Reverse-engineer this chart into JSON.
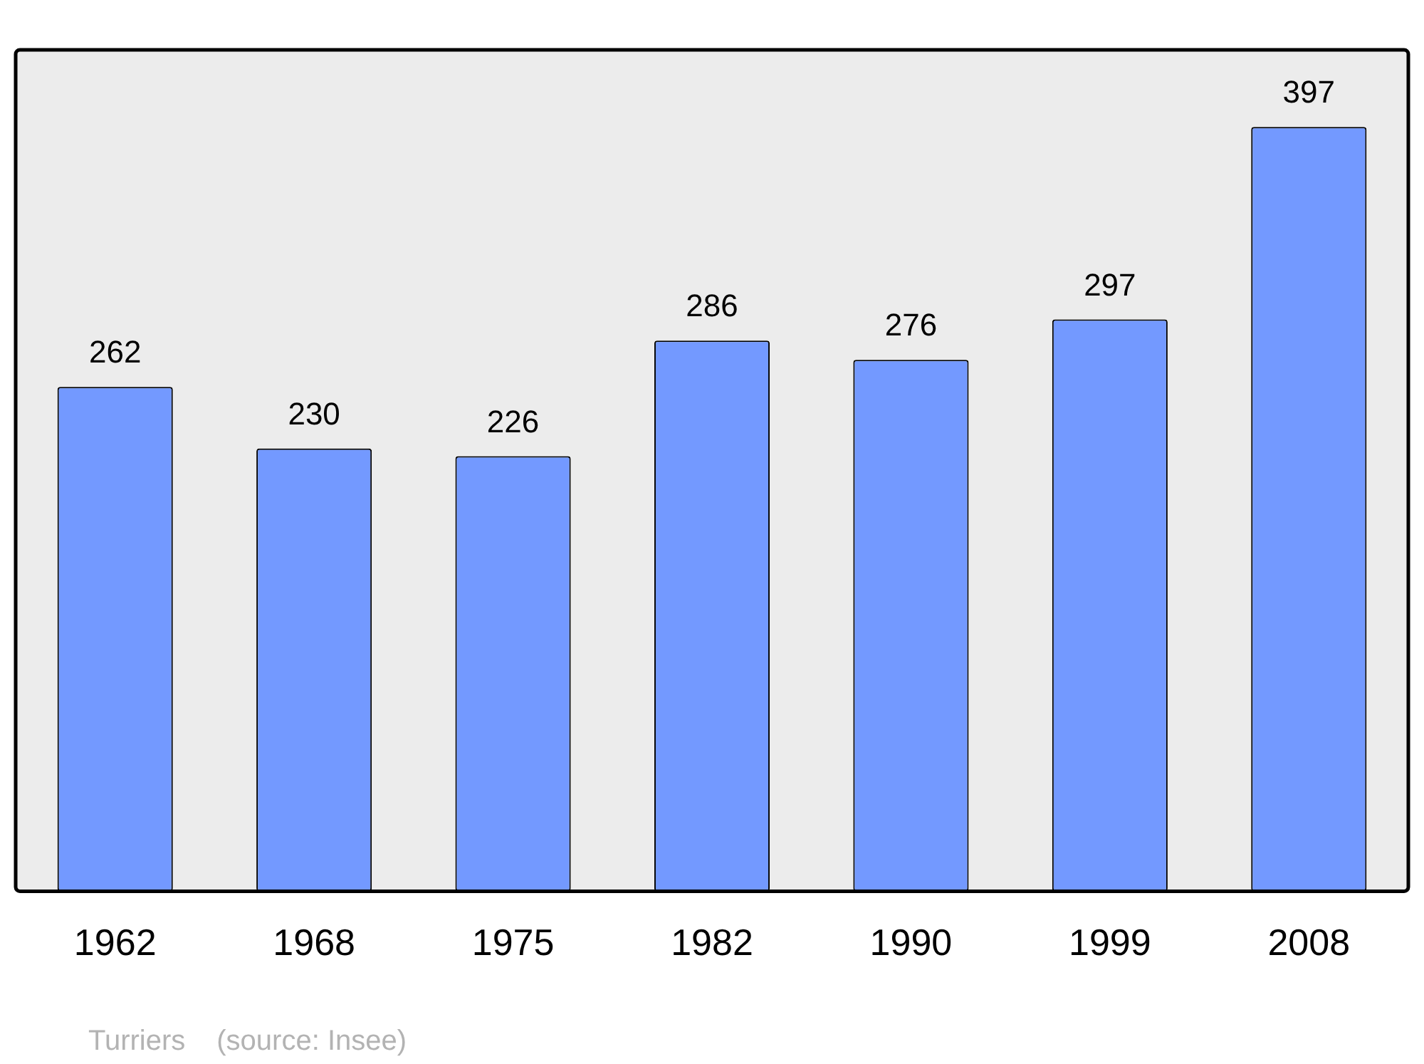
{
  "chart_data": {
    "type": "bar",
    "categories": [
      "1962",
      "1968",
      "1975",
      "1982",
      "1990",
      "1999",
      "2008"
    ],
    "values": [
      262,
      230,
      226,
      286,
      276,
      297,
      397
    ],
    "color": "#7399ff",
    "data_labels": true,
    "ylim": [
      0,
      437
    ],
    "tick_labels": "x",
    "grid": false,
    "legend": false,
    "annotations": [
      "Turriers",
      "(source: Insee)"
    ]
  }
}
